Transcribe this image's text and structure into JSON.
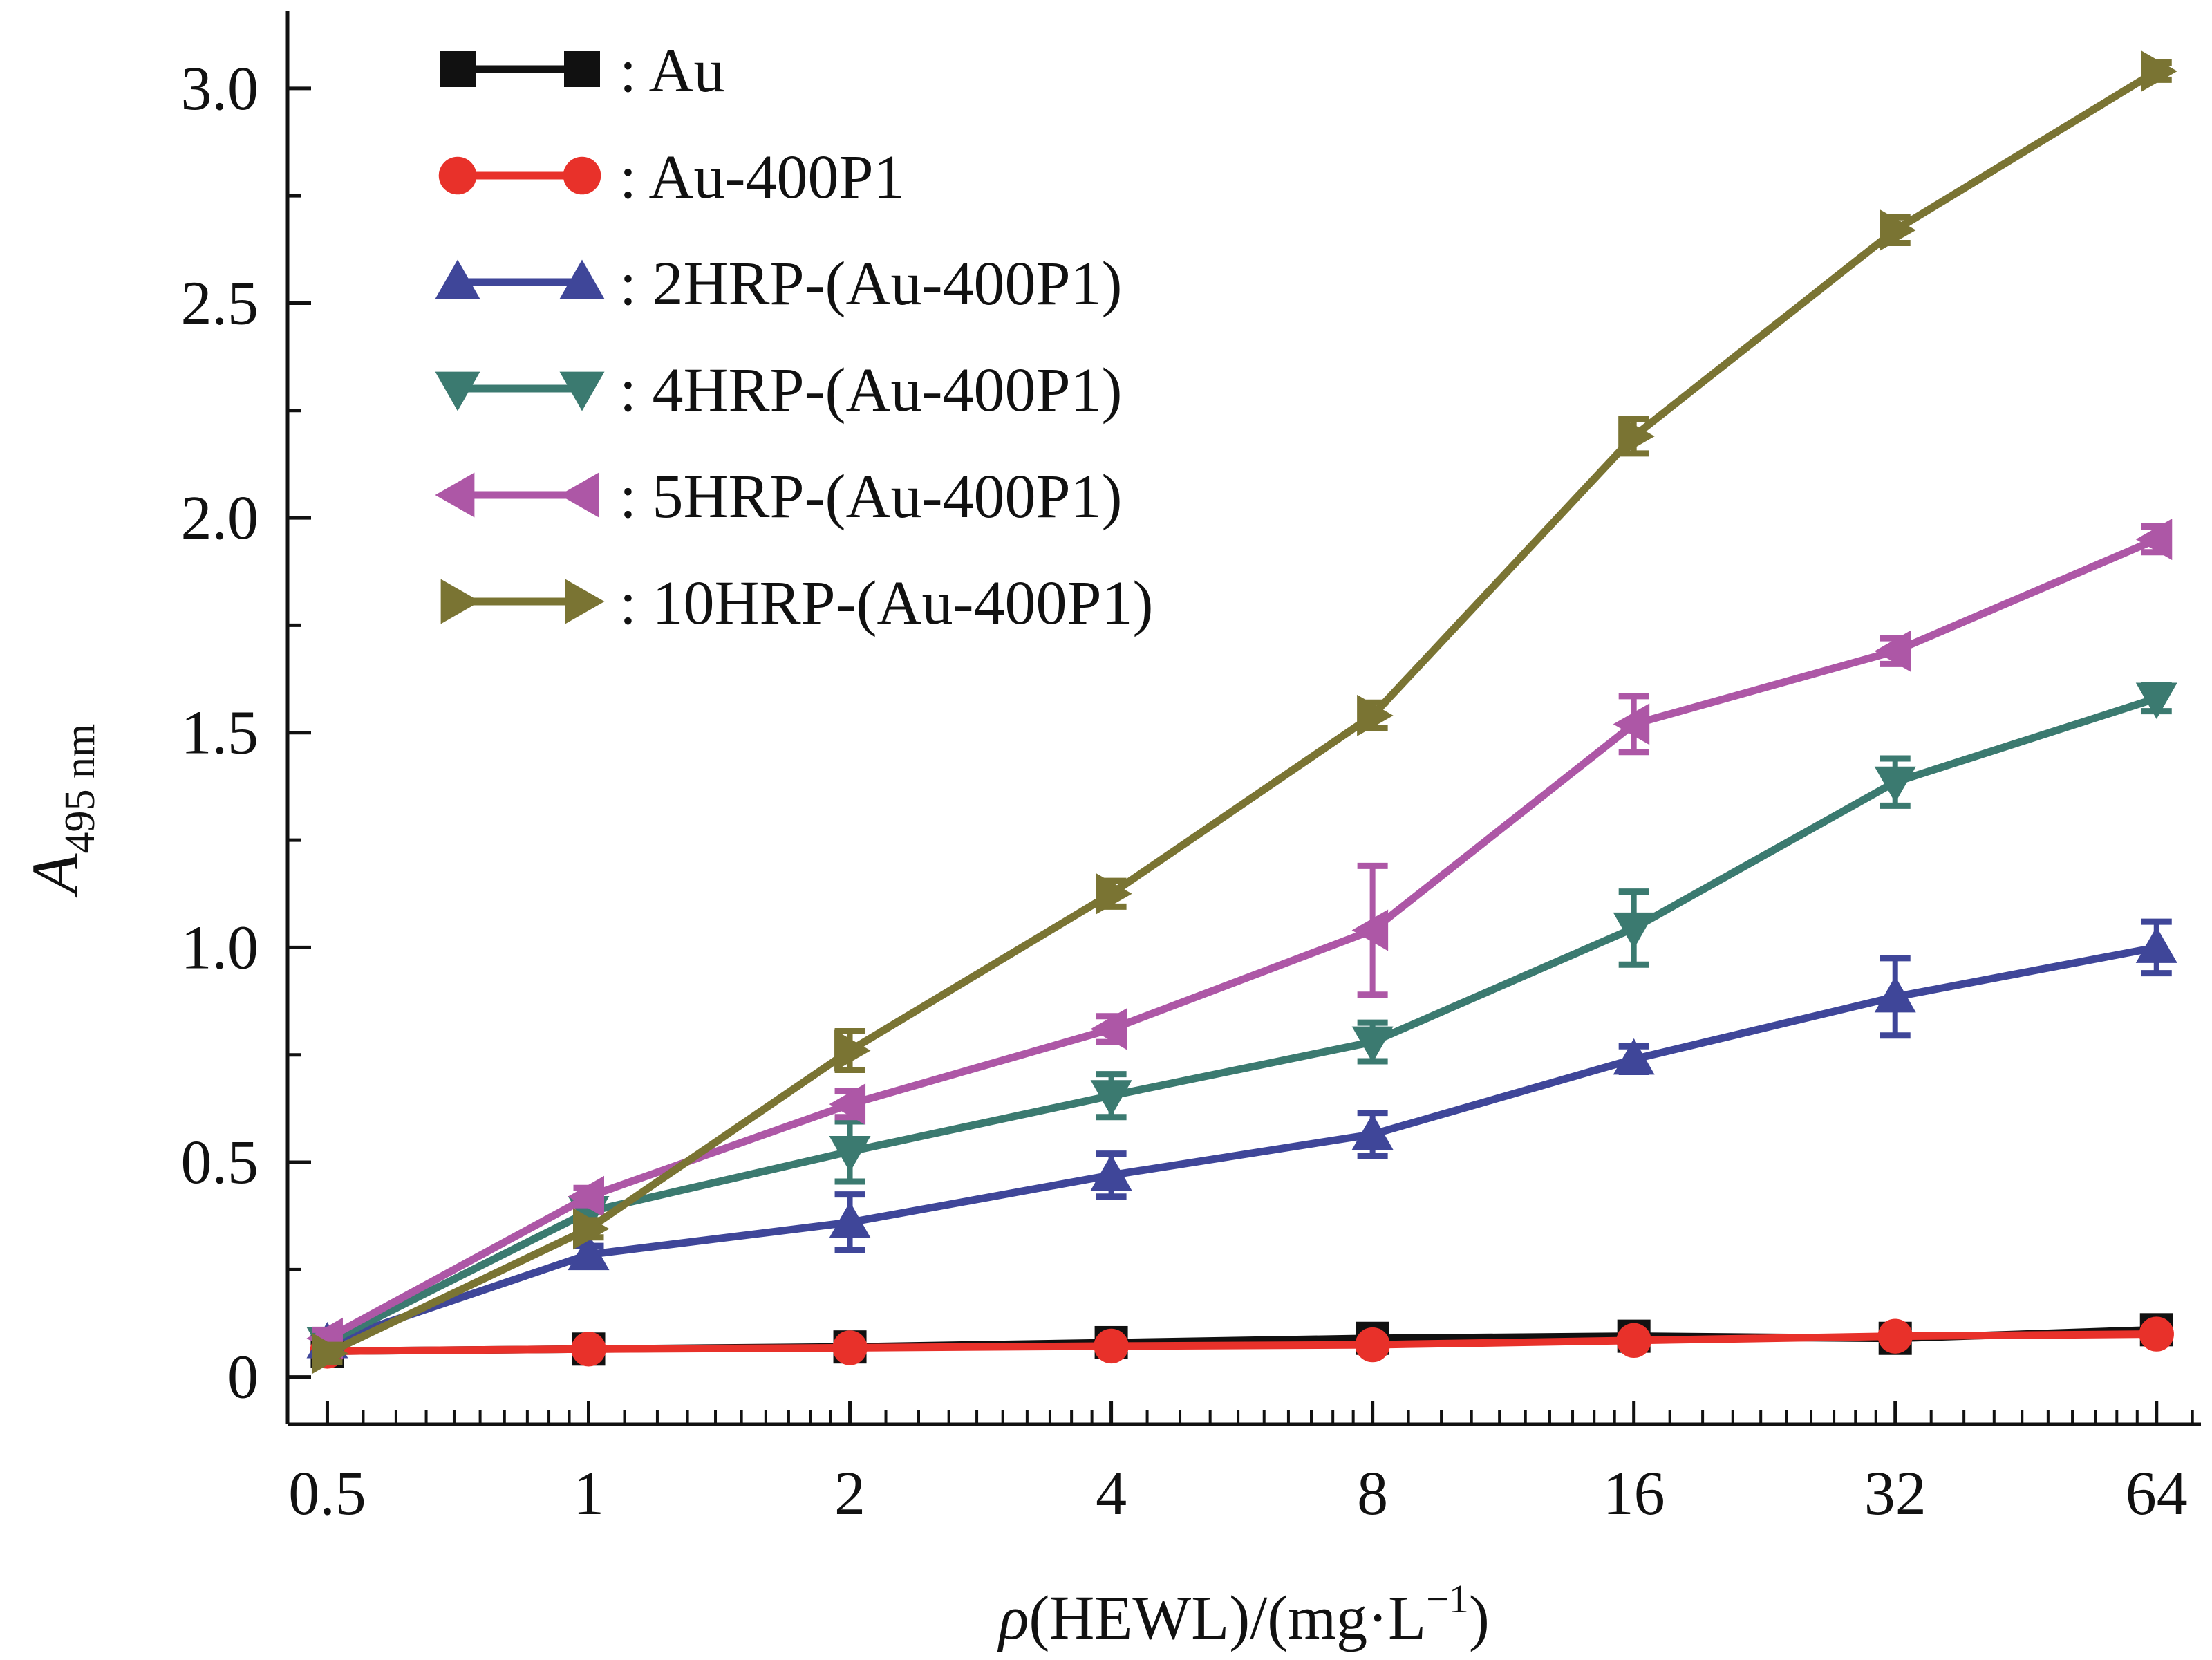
{
  "chart_data": {
    "type": "line",
    "title": "",
    "x_scale": "log2",
    "x": [
      0.5,
      1,
      2,
      4,
      8,
      16,
      32,
      64
    ],
    "x_tick_labels": [
      "0.5",
      "1",
      "2",
      "4",
      "8",
      "16",
      "32",
      "64"
    ],
    "y_tick_values": [
      0,
      0.5,
      1.0,
      1.5,
      2.0,
      2.5,
      3.0
    ],
    "y_tick_labels": [
      "0",
      "0.5",
      "1.0",
      "1.5",
      "2.0",
      "2.5",
      "3.0"
    ],
    "xlim": [
      0.45,
      72
    ],
    "ylim": [
      -0.11,
      3.18
    ],
    "xlabel": {
      "italic": "ρ",
      "text": "(HEWL)/(mg·L",
      "sup": "−1",
      "close": ")"
    },
    "ylabel": {
      "italic": "A",
      "sub": "495 nm"
    },
    "legend_position": "top-left",
    "grid": false,
    "series": [
      {
        "name": ": Au",
        "color": "#111111",
        "marker": "square",
        "values": [
          0.06,
          0.065,
          0.07,
          0.08,
          0.09,
          0.095,
          0.09,
          0.11
        ],
        "errors": [
          0.01,
          0.01,
          0.01,
          0.01,
          0.01,
          0.01,
          0.01,
          0.01
        ]
      },
      {
        "name": ": Au-400P1",
        "color": "#e8312a",
        "marker": "circle",
        "values": [
          0.06,
          0.065,
          0.068,
          0.072,
          0.075,
          0.085,
          0.095,
          0.1
        ],
        "errors": [
          0.01,
          0.01,
          0.01,
          0.01,
          0.01,
          0.01,
          0.01,
          0.01
        ]
      },
      {
        "name": ": 2HRP-(Au-400P1)",
        "color": "#3f4699",
        "marker": "triangle-up",
        "values": [
          0.08,
          0.285,
          0.36,
          0.47,
          0.565,
          0.74,
          0.885,
          1.0
        ],
        "errors": [
          0.02,
          0.02,
          0.065,
          0.05,
          0.05,
          0.03,
          0.09,
          0.06
        ]
      },
      {
        "name": ": 4HRP-(Au-400P1)",
        "color": "#3b7a70",
        "marker": "triangle-down",
        "values": [
          0.08,
          0.385,
          0.525,
          0.655,
          0.78,
          1.045,
          1.385,
          1.58
        ],
        "errors": [
          0.02,
          0.02,
          0.07,
          0.05,
          0.045,
          0.085,
          0.055,
          0.03
        ]
      },
      {
        "name": ": 5HRP-(Au-400P1)",
        "color": "#ad57a6",
        "marker": "triangle-left",
        "values": [
          0.09,
          0.42,
          0.635,
          0.81,
          1.04,
          1.52,
          1.69,
          1.95
        ],
        "errors": [
          0.02,
          0.02,
          0.03,
          0.03,
          0.15,
          0.065,
          0.03,
          0.03
        ]
      },
      {
        "name": ": 10HRP-(Au-400P1)",
        "color": "#7a7433",
        "marker": "triangle-right",
        "values": [
          0.055,
          0.345,
          0.76,
          1.125,
          1.54,
          2.19,
          2.67,
          3.04
        ],
        "errors": [
          0.02,
          0.02,
          0.045,
          0.03,
          0.03,
          0.04,
          0.03,
          0.02
        ]
      }
    ]
  }
}
